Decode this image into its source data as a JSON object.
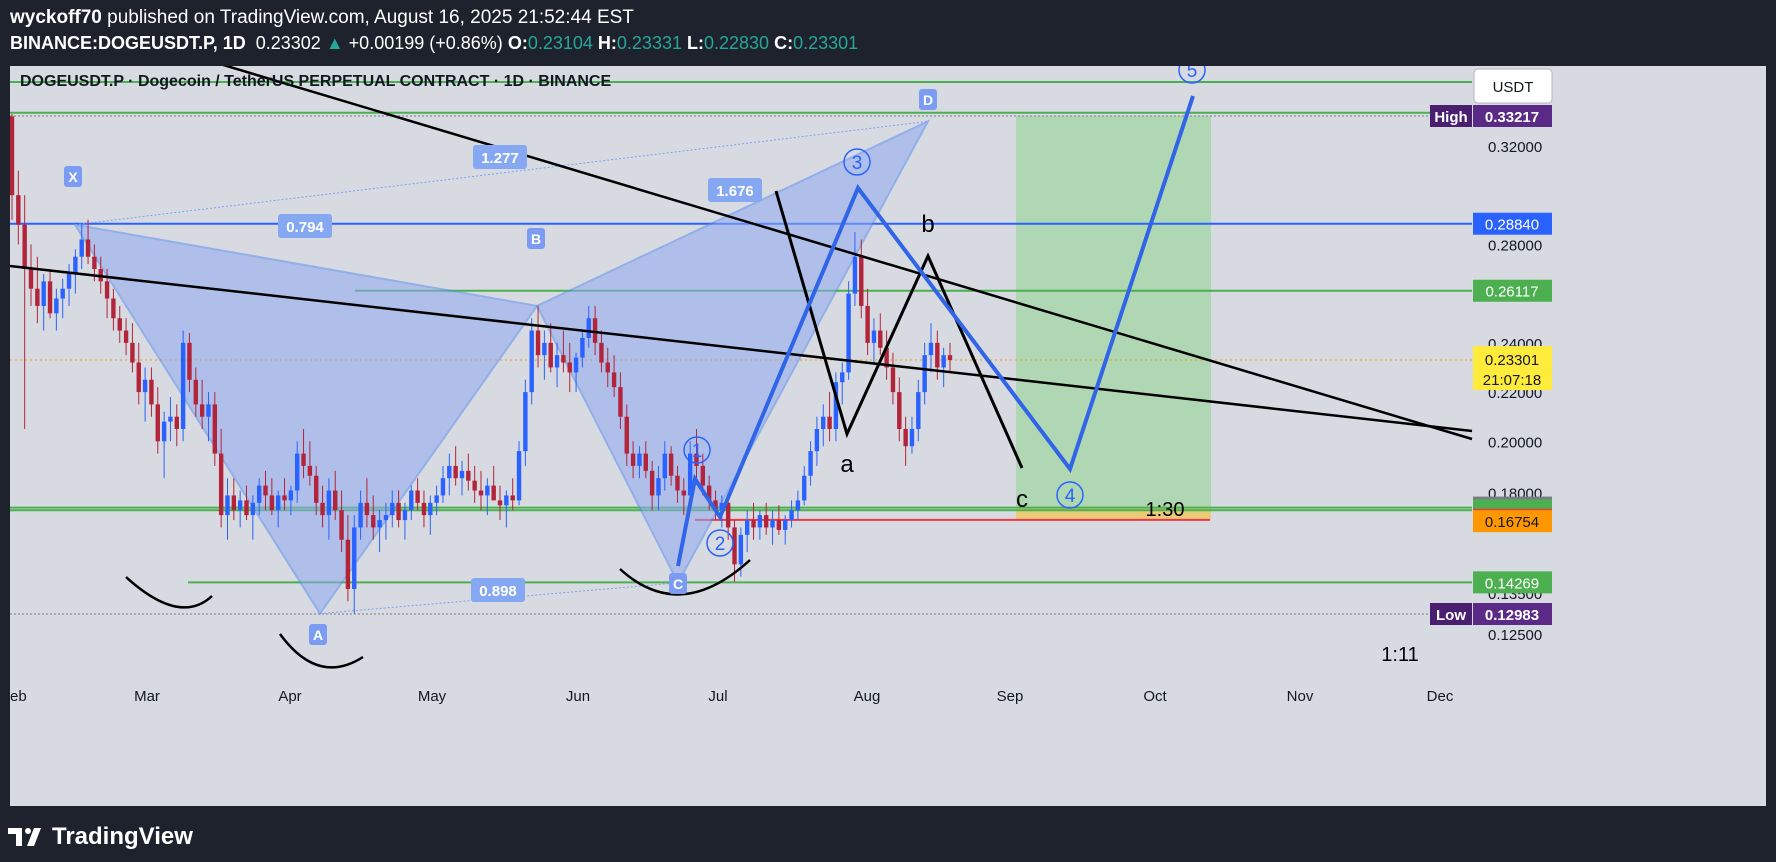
{
  "header": {
    "publisher": "wyckoff70",
    "published_text": "published on TradingView.com, August 16, 2025 21:52:44 EST",
    "symbol": "BINANCE:DOGEUSDT.P, 1D",
    "last": "0.23302",
    "change_arrow": "▲",
    "change": "+0.00199 (+0.86%)",
    "open_label": "O:",
    "open": "0.23104",
    "high_label": "H:",
    "high": "0.23331",
    "low_label": "L:",
    "low": "0.22830",
    "close_label": "C:",
    "close": "0.23301"
  },
  "chart_title": "DOGEUSDT.P · Dogecoin / TetherUS PERPETUAL CONTRACT · 1D · BINANCE",
  "currency_button": "USDT",
  "footer": {
    "brand": "TradingView"
  },
  "colors": {
    "green_line": "#4caf50",
    "blue_line": "#2962ff",
    "pattern_fill": "#8fa9f3",
    "wave_line": "#3165e8",
    "high_label_bg": "#5b2a86",
    "red_line": "#f23645",
    "orange_label": "#ff9800",
    "current_price_bg": "#ffeb3b"
  },
  "chart_data": {
    "type": "candlestick",
    "yscale": "linear",
    "ylim": [
      0.12,
      0.345
    ],
    "x_ticks": [
      "eb",
      "Mar",
      "Apr",
      "May",
      "Jun",
      "Jul",
      "Aug",
      "Sep",
      "Oct",
      "Nov",
      "Dec"
    ],
    "y_ticks": [
      "0.32000",
      "0.28000",
      "0.24000",
      "0.22000",
      "0.20000",
      "0.18000",
      "0.13500",
      "0.12500"
    ],
    "price_labels": [
      {
        "text": "High",
        "value": "0.33217",
        "price": 0.33217,
        "style": "high"
      },
      {
        "text": "",
        "value": "0.28840",
        "price": 0.2884,
        "style": "blue"
      },
      {
        "text": "",
        "value": "0.26117",
        "price": 0.26117,
        "style": "green"
      },
      {
        "text": "",
        "value": "0.23301",
        "value2": "21:07:18",
        "price": 0.23301,
        "style": "current"
      },
      {
        "text": "",
        "value": "0.17307",
        "price": 0.17307,
        "style": "gray"
      },
      {
        "text": "",
        "value": "0.17196",
        "price": 0.17196,
        "style": "green"
      },
      {
        "text": "",
        "value": "0.16981",
        "price": 0.16981,
        "style": "green"
      },
      {
        "text": "",
        "value": "0.16809",
        "price": 0.16809,
        "style": "red"
      },
      {
        "text": "",
        "value": "0.16754",
        "price": 0.16754,
        "style": "orange"
      },
      {
        "text": "",
        "value": "0.14269",
        "price": 0.14269,
        "style": "green"
      },
      {
        "text": "Low",
        "value": "0.12983",
        "price": 0.12983,
        "style": "low"
      }
    ],
    "harmonic_pattern": {
      "points": [
        {
          "label": "X",
          "price": 0.288
        },
        {
          "label": "A",
          "price": 0.13
        },
        {
          "label": "B",
          "price": 0.255
        },
        {
          "label": "C",
          "price": 0.1425
        },
        {
          "label": "D",
          "price": 0.33
        }
      ],
      "ratios": [
        "0.794",
        "1.277",
        "0.898",
        "1.676"
      ]
    },
    "wave_labels": [
      "1",
      "2",
      "3",
      "4",
      "5"
    ],
    "correction_labels": [
      "a",
      "b",
      "c"
    ],
    "risk_reward_labels": [
      "1:30",
      "1:11"
    ],
    "candles": [
      [
        0.332,
        0.333,
        0.29,
        0.3
      ],
      [
        0.3,
        0.31,
        0.28,
        0.288
      ],
      [
        0.288,
        0.3,
        0.205,
        0.27
      ],
      [
        0.27,
        0.28,
        0.255,
        0.262
      ],
      [
        0.262,
        0.275,
        0.248,
        0.255
      ],
      [
        0.255,
        0.268,
        0.245,
        0.265
      ],
      [
        0.265,
        0.27,
        0.25,
        0.252
      ],
      [
        0.252,
        0.262,
        0.245,
        0.258
      ],
      [
        0.258,
        0.266,
        0.25,
        0.262
      ],
      [
        0.262,
        0.272,
        0.255,
        0.268
      ],
      [
        0.268,
        0.278,
        0.26,
        0.275
      ],
      [
        0.275,
        0.288,
        0.27,
        0.282
      ],
      [
        0.282,
        0.29,
        0.272,
        0.275
      ],
      [
        0.275,
        0.28,
        0.265,
        0.27
      ],
      [
        0.27,
        0.275,
        0.26,
        0.265
      ],
      [
        0.265,
        0.27,
        0.25,
        0.258
      ],
      [
        0.258,
        0.262,
        0.245,
        0.25
      ],
      [
        0.25,
        0.255,
        0.24,
        0.245
      ],
      [
        0.245,
        0.25,
        0.235,
        0.24
      ],
      [
        0.24,
        0.248,
        0.228,
        0.232
      ],
      [
        0.232,
        0.24,
        0.215,
        0.22
      ],
      [
        0.22,
        0.23,
        0.208,
        0.225
      ],
      [
        0.225,
        0.23,
        0.21,
        0.215
      ],
      [
        0.215,
        0.222,
        0.195,
        0.2
      ],
      [
        0.2,
        0.212,
        0.185,
        0.208
      ],
      [
        0.208,
        0.218,
        0.2,
        0.21
      ],
      [
        0.21,
        0.215,
        0.198,
        0.205
      ],
      [
        0.205,
        0.245,
        0.2,
        0.24
      ],
      [
        0.24,
        0.244,
        0.22,
        0.225
      ],
      [
        0.225,
        0.23,
        0.21,
        0.215
      ],
      [
        0.215,
        0.225,
        0.205,
        0.21
      ],
      [
        0.21,
        0.22,
        0.2,
        0.215
      ],
      [
        0.215,
        0.22,
        0.19,
        0.195
      ],
      [
        0.195,
        0.205,
        0.165,
        0.17
      ],
      [
        0.17,
        0.185,
        0.16,
        0.178
      ],
      [
        0.178,
        0.185,
        0.168,
        0.172
      ],
      [
        0.172,
        0.18,
        0.165,
        0.176
      ],
      [
        0.176,
        0.182,
        0.168,
        0.17
      ],
      [
        0.17,
        0.178,
        0.16,
        0.175
      ],
      [
        0.175,
        0.185,
        0.17,
        0.182
      ],
      [
        0.182,
        0.188,
        0.172,
        0.178
      ],
      [
        0.178,
        0.185,
        0.17,
        0.172
      ],
      [
        0.172,
        0.18,
        0.165,
        0.178
      ],
      [
        0.178,
        0.185,
        0.172,
        0.176
      ],
      [
        0.176,
        0.182,
        0.17,
        0.18
      ],
      [
        0.18,
        0.2,
        0.175,
        0.195
      ],
      [
        0.195,
        0.205,
        0.185,
        0.19
      ],
      [
        0.19,
        0.2,
        0.182,
        0.186
      ],
      [
        0.186,
        0.19,
        0.17,
        0.175
      ],
      [
        0.175,
        0.182,
        0.165,
        0.17
      ],
      [
        0.17,
        0.185,
        0.16,
        0.18
      ],
      [
        0.18,
        0.188,
        0.168,
        0.172
      ],
      [
        0.172,
        0.18,
        0.155,
        0.16
      ],
      [
        0.16,
        0.17,
        0.135,
        0.14
      ],
      [
        0.14,
        0.17,
        0.13,
        0.165
      ],
      [
        0.165,
        0.18,
        0.16,
        0.175
      ],
      [
        0.175,
        0.185,
        0.165,
        0.17
      ],
      [
        0.17,
        0.178,
        0.16,
        0.165
      ],
      [
        0.165,
        0.172,
        0.155,
        0.168
      ],
      [
        0.168,
        0.175,
        0.16,
        0.17
      ],
      [
        0.17,
        0.18,
        0.165,
        0.175
      ],
      [
        0.175,
        0.18,
        0.165,
        0.168
      ],
      [
        0.168,
        0.175,
        0.16,
        0.172
      ],
      [
        0.172,
        0.182,
        0.168,
        0.18
      ],
      [
        0.18,
        0.185,
        0.172,
        0.175
      ],
      [
        0.175,
        0.18,
        0.165,
        0.17
      ],
      [
        0.17,
        0.178,
        0.162,
        0.175
      ],
      [
        0.175,
        0.182,
        0.17,
        0.178
      ],
      [
        0.178,
        0.19,
        0.175,
        0.185
      ],
      [
        0.185,
        0.195,
        0.178,
        0.19
      ],
      [
        0.19,
        0.198,
        0.182,
        0.185
      ],
      [
        0.185,
        0.192,
        0.178,
        0.188
      ],
      [
        0.188,
        0.195,
        0.18,
        0.184
      ],
      [
        0.184,
        0.19,
        0.175,
        0.18
      ],
      [
        0.18,
        0.188,
        0.172,
        0.178
      ],
      [
        0.178,
        0.185,
        0.17,
        0.182
      ],
      [
        0.182,
        0.19,
        0.176,
        0.176
      ],
      [
        0.176,
        0.182,
        0.168,
        0.174
      ],
      [
        0.174,
        0.18,
        0.165,
        0.178
      ],
      [
        0.178,
        0.185,
        0.172,
        0.176
      ],
      [
        0.176,
        0.2,
        0.174,
        0.196
      ],
      [
        0.196,
        0.225,
        0.19,
        0.22
      ],
      [
        0.22,
        0.25,
        0.215,
        0.245
      ],
      [
        0.245,
        0.255,
        0.23,
        0.235
      ],
      [
        0.235,
        0.245,
        0.225,
        0.24
      ],
      [
        0.24,
        0.248,
        0.228,
        0.23
      ],
      [
        0.23,
        0.24,
        0.222,
        0.235
      ],
      [
        0.235,
        0.245,
        0.228,
        0.232
      ],
      [
        0.232,
        0.24,
        0.22,
        0.228
      ],
      [
        0.228,
        0.236,
        0.22,
        0.234
      ],
      [
        0.234,
        0.245,
        0.23,
        0.242
      ],
      [
        0.242,
        0.255,
        0.238,
        0.25
      ],
      [
        0.25,
        0.255,
        0.235,
        0.24
      ],
      [
        0.24,
        0.245,
        0.228,
        0.232
      ],
      [
        0.232,
        0.238,
        0.222,
        0.228
      ],
      [
        0.228,
        0.235,
        0.218,
        0.222
      ],
      [
        0.222,
        0.228,
        0.205,
        0.21
      ],
      [
        0.21,
        0.215,
        0.19,
        0.195
      ],
      [
        0.195,
        0.2,
        0.185,
        0.19
      ],
      [
        0.19,
        0.198,
        0.185,
        0.195
      ],
      [
        0.195,
        0.2,
        0.185,
        0.188
      ],
      [
        0.188,
        0.192,
        0.172,
        0.178
      ],
      [
        0.178,
        0.19,
        0.172,
        0.185
      ],
      [
        0.185,
        0.2,
        0.18,
        0.195
      ],
      [
        0.195,
        0.198,
        0.182,
        0.186
      ],
      [
        0.186,
        0.19,
        0.175,
        0.18
      ],
      [
        0.18,
        0.185,
        0.17,
        0.178
      ],
      [
        0.178,
        0.2,
        0.176,
        0.195
      ],
      [
        0.195,
        0.205,
        0.185,
        0.19
      ],
      [
        0.19,
        0.195,
        0.178,
        0.182
      ],
      [
        0.182,
        0.186,
        0.172,
        0.176
      ],
      [
        0.176,
        0.18,
        0.168,
        0.172
      ],
      [
        0.172,
        0.178,
        0.165,
        0.175
      ],
      [
        0.175,
        0.178,
        0.16,
        0.165
      ],
      [
        0.165,
        0.168,
        0.143,
        0.15
      ],
      [
        0.15,
        0.165,
        0.145,
        0.162
      ],
      [
        0.162,
        0.172,
        0.155,
        0.168
      ],
      [
        0.168,
        0.175,
        0.16,
        0.165
      ],
      [
        0.165,
        0.172,
        0.16,
        0.17
      ],
      [
        0.17,
        0.175,
        0.162,
        0.165
      ],
      [
        0.165,
        0.172,
        0.158,
        0.168
      ],
      [
        0.168,
        0.174,
        0.162,
        0.164
      ],
      [
        0.164,
        0.17,
        0.158,
        0.168
      ],
      [
        0.168,
        0.176,
        0.165,
        0.172
      ],
      [
        0.172,
        0.18,
        0.168,
        0.176
      ],
      [
        0.176,
        0.19,
        0.174,
        0.186
      ],
      [
        0.186,
        0.2,
        0.182,
        0.196
      ],
      [
        0.196,
        0.21,
        0.19,
        0.205
      ],
      [
        0.205,
        0.215,
        0.198,
        0.21
      ],
      [
        0.21,
        0.22,
        0.2,
        0.205
      ],
      [
        0.205,
        0.228,
        0.2,
        0.224
      ],
      [
        0.224,
        0.232,
        0.215,
        0.228
      ],
      [
        0.228,
        0.265,
        0.225,
        0.26
      ],
      [
        0.26,
        0.285,
        0.255,
        0.275
      ],
      [
        0.275,
        0.282,
        0.25,
        0.255
      ],
      [
        0.255,
        0.262,
        0.235,
        0.24
      ],
      [
        0.24,
        0.25,
        0.232,
        0.245
      ],
      [
        0.245,
        0.252,
        0.235,
        0.238
      ],
      [
        0.238,
        0.245,
        0.225,
        0.23
      ],
      [
        0.23,
        0.236,
        0.215,
        0.22
      ],
      [
        0.22,
        0.226,
        0.2,
        0.205
      ],
      [
        0.205,
        0.21,
        0.19,
        0.198
      ],
      [
        0.198,
        0.21,
        0.195,
        0.205
      ],
      [
        0.205,
        0.225,
        0.2,
        0.22
      ],
      [
        0.22,
        0.24,
        0.215,
        0.235
      ],
      [
        0.235,
        0.248,
        0.228,
        0.24
      ],
      [
        0.24,
        0.245,
        0.225,
        0.23
      ],
      [
        0.23,
        0.238,
        0.222,
        0.235
      ],
      [
        0.235,
        0.24,
        0.228,
        0.233
      ]
    ]
  }
}
